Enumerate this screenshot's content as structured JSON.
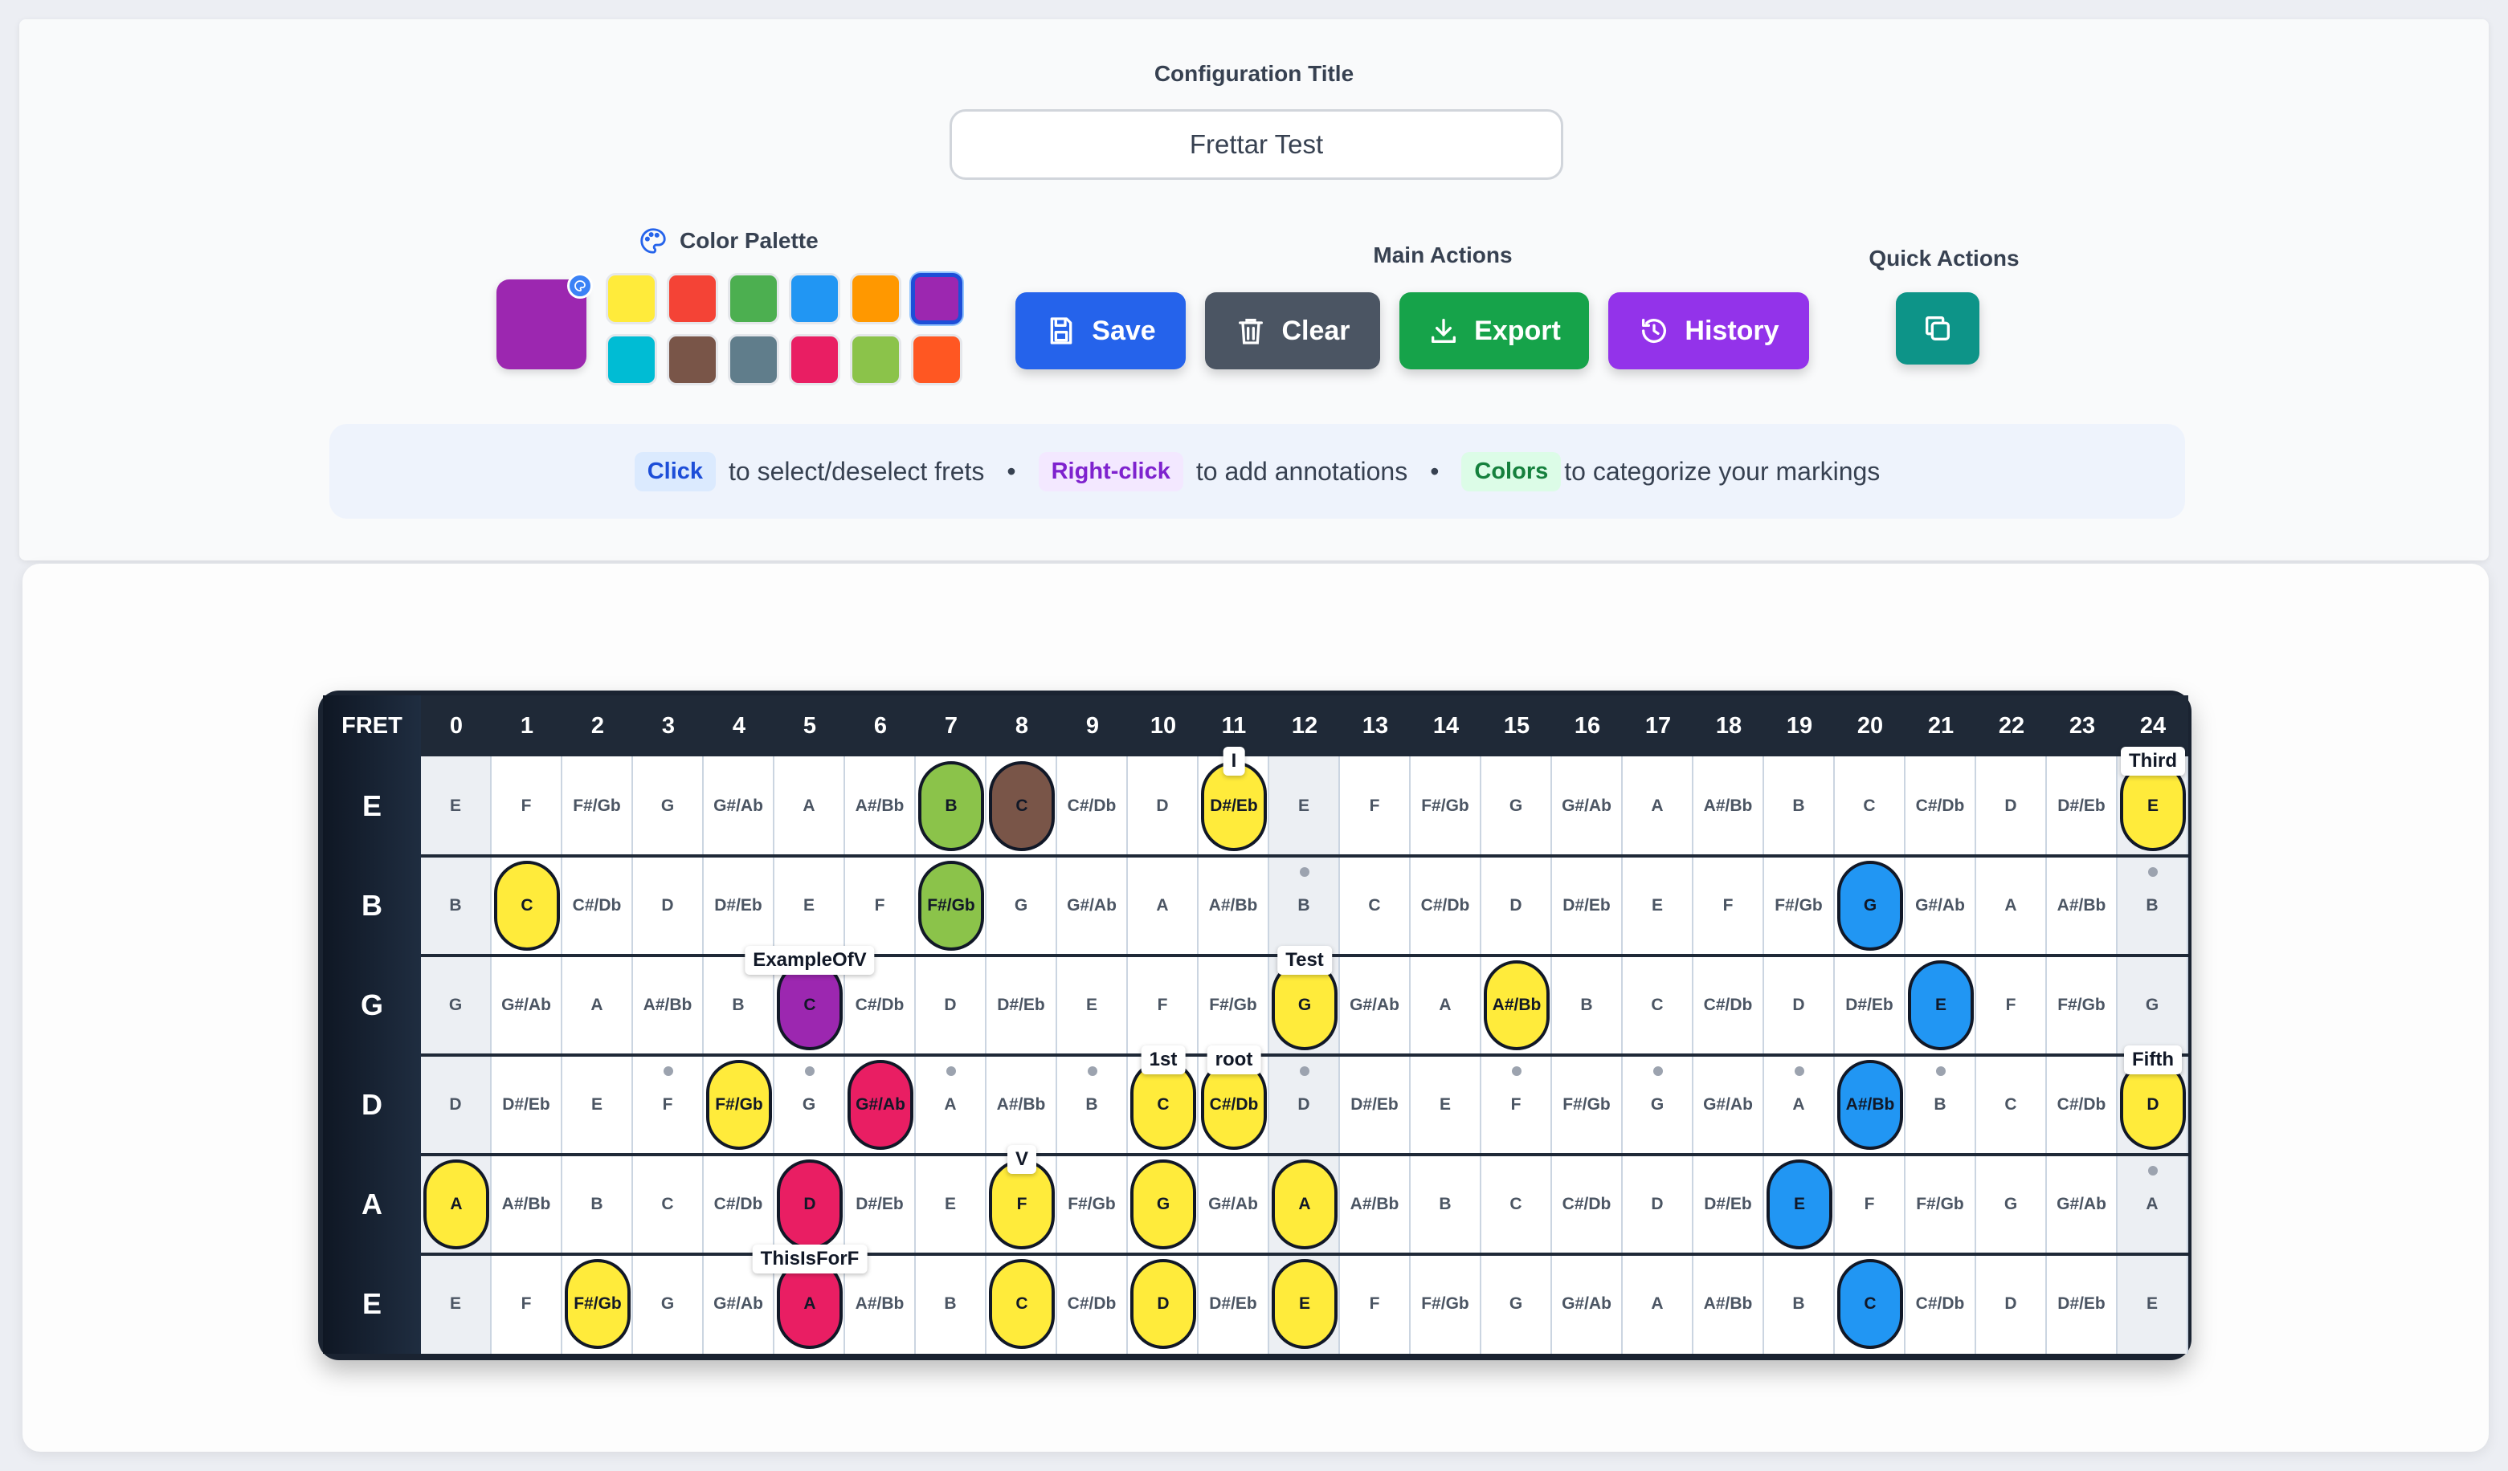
{
  "config": {
    "title_label": "Configuration Title",
    "title_value": "Frettar Test"
  },
  "palette": {
    "label": "Color Palette",
    "current_color": "#9c27b0",
    "swatches": [
      "#ffeb3b",
      "#f44336",
      "#4caf50",
      "#2196f3",
      "#ff9800",
      "#9c27b0",
      "#00bcd4",
      "#795548",
      "#607d8b",
      "#e91e63",
      "#8bc34a",
      "#ff5722"
    ],
    "selected_index": 5
  },
  "main_actions": {
    "label": "Main Actions",
    "save": "Save",
    "clear": "Clear",
    "export": "Export",
    "history": "History"
  },
  "quick_actions": {
    "label": "Quick Actions"
  },
  "hints": {
    "click_tag": "Click",
    "click_text": "to select/deselect frets",
    "right_tag": "Right-click",
    "right_text": "to add annotations",
    "colors_tag": "Colors",
    "colors_text": "to categorize your markings"
  },
  "fretboard": {
    "header_label": "FRET",
    "frets": [
      "0",
      "1",
      "2",
      "3",
      "4",
      "5",
      "6",
      "7",
      "8",
      "9",
      "10",
      "11",
      "12",
      "13",
      "14",
      "15",
      "16",
      "17",
      "18",
      "19",
      "20",
      "21",
      "22",
      "23",
      "24"
    ],
    "strings": [
      {
        "name": "E",
        "notes": [
          "E",
          "F",
          "F#/Gb",
          "G",
          "G#/Ab",
          "A",
          "A#/Bb",
          "B",
          "C",
          "C#/Db",
          "D",
          "D#/Eb",
          "E",
          "F",
          "F#/Gb",
          "G",
          "G#/Ab",
          "A",
          "A#/Bb",
          "B",
          "C",
          "C#/Db",
          "D",
          "D#/Eb",
          "E"
        ]
      },
      {
        "name": "B",
        "notes": [
          "B",
          "C",
          "C#/Db",
          "D",
          "D#/Eb",
          "E",
          "F",
          "F#/Gb",
          "G",
          "G#/Ab",
          "A",
          "A#/Bb",
          "B",
          "C",
          "C#/Db",
          "D",
          "D#/Eb",
          "E",
          "F",
          "F#/Gb",
          "G",
          "G#/Ab",
          "A",
          "A#/Bb",
          "B"
        ]
      },
      {
        "name": "G",
        "notes": [
          "G",
          "G#/Ab",
          "A",
          "A#/Bb",
          "B",
          "C",
          "C#/Db",
          "D",
          "D#/Eb",
          "E",
          "F",
          "F#/Gb",
          "G",
          "G#/Ab",
          "A",
          "A#/Bb",
          "B",
          "C",
          "C#/Db",
          "D",
          "D#/Eb",
          "E",
          "F",
          "F#/Gb",
          "G"
        ]
      },
      {
        "name": "D",
        "notes": [
          "D",
          "D#/Eb",
          "E",
          "F",
          "F#/Gb",
          "G",
          "G#/Ab",
          "A",
          "A#/Bb",
          "B",
          "C",
          "C#/Db",
          "D",
          "D#/Eb",
          "E",
          "F",
          "F#/Gb",
          "G",
          "G#/Ab",
          "A",
          "A#/Bb",
          "B",
          "C",
          "C#/Db",
          "D"
        ]
      },
      {
        "name": "A",
        "notes": [
          "A",
          "A#/Bb",
          "B",
          "C",
          "C#/Db",
          "D",
          "D#/Eb",
          "E",
          "F",
          "F#/Gb",
          "G",
          "G#/Ab",
          "A",
          "A#/Bb",
          "B",
          "C",
          "C#/Db",
          "D",
          "D#/Eb",
          "E",
          "F",
          "F#/Gb",
          "G",
          "G#/Ab",
          "A"
        ]
      },
      {
        "name": "E",
        "notes": [
          "E",
          "F",
          "F#/Gb",
          "G",
          "G#/Ab",
          "A",
          "A#/Bb",
          "B",
          "C",
          "C#/Db",
          "D",
          "D#/Eb",
          "E",
          "F",
          "F#/Gb",
          "G",
          "G#/Ab",
          "A",
          "A#/Bb",
          "B",
          "C",
          "C#/Db",
          "D",
          "D#/Eb",
          "E"
        ]
      }
    ],
    "marked": [
      {
        "s": 0,
        "f": 7,
        "color": "#8bc34a"
      },
      {
        "s": 0,
        "f": 8,
        "color": "#795548"
      },
      {
        "s": 0,
        "f": 11,
        "color": "#ffeb3b"
      },
      {
        "s": 0,
        "f": 24,
        "color": "#ffeb3b"
      },
      {
        "s": 1,
        "f": 1,
        "color": "#ffeb3b"
      },
      {
        "s": 1,
        "f": 7,
        "color": "#8bc34a"
      },
      {
        "s": 1,
        "f": 20,
        "color": "#2196f3"
      },
      {
        "s": 2,
        "f": 5,
        "color": "#9c27b0"
      },
      {
        "s": 2,
        "f": 12,
        "color": "#ffeb3b"
      },
      {
        "s": 2,
        "f": 15,
        "color": "#ffeb3b"
      },
      {
        "s": 2,
        "f": 21,
        "color": "#2196f3"
      },
      {
        "s": 3,
        "f": 4,
        "color": "#ffeb3b"
      },
      {
        "s": 3,
        "f": 6,
        "color": "#e91e63"
      },
      {
        "s": 3,
        "f": 10,
        "color": "#ffeb3b"
      },
      {
        "s": 3,
        "f": 11,
        "color": "#ffeb3b"
      },
      {
        "s": 3,
        "f": 20,
        "color": "#2196f3"
      },
      {
        "s": 3,
        "f": 24,
        "color": "#ffeb3b"
      },
      {
        "s": 4,
        "f": 0,
        "color": "#ffeb3b"
      },
      {
        "s": 4,
        "f": 5,
        "color": "#e91e63"
      },
      {
        "s": 4,
        "f": 8,
        "color": "#ffeb3b"
      },
      {
        "s": 4,
        "f": 10,
        "color": "#ffeb3b"
      },
      {
        "s": 4,
        "f": 12,
        "color": "#ffeb3b"
      },
      {
        "s": 4,
        "f": 19,
        "color": "#2196f3"
      },
      {
        "s": 5,
        "f": 2,
        "color": "#ffeb3b"
      },
      {
        "s": 5,
        "f": 5,
        "color": "#e91e63"
      },
      {
        "s": 5,
        "f": 8,
        "color": "#ffeb3b"
      },
      {
        "s": 5,
        "f": 10,
        "color": "#ffeb3b"
      },
      {
        "s": 5,
        "f": 12,
        "color": "#ffeb3b"
      },
      {
        "s": 5,
        "f": 20,
        "color": "#2196f3"
      }
    ],
    "annotations": [
      {
        "s": 0,
        "f": 11,
        "text": "I"
      },
      {
        "s": 0,
        "f": 24,
        "text": "Third"
      },
      {
        "s": 2,
        "f": 5,
        "text": "ExampleOfV"
      },
      {
        "s": 2,
        "f": 12,
        "text": "Test"
      },
      {
        "s": 3,
        "f": 10,
        "text": "1st"
      },
      {
        "s": 3,
        "f": 11,
        "text": "root"
      },
      {
        "s": 3,
        "f": 24,
        "text": "Fifth"
      },
      {
        "s": 4,
        "f": 8,
        "text": "V"
      },
      {
        "s": 5,
        "f": 5,
        "text": "ThisIsForF"
      }
    ],
    "inlay_frets": [
      3,
      5,
      7,
      9,
      12,
      15,
      17,
      19,
      21,
      24
    ]
  }
}
